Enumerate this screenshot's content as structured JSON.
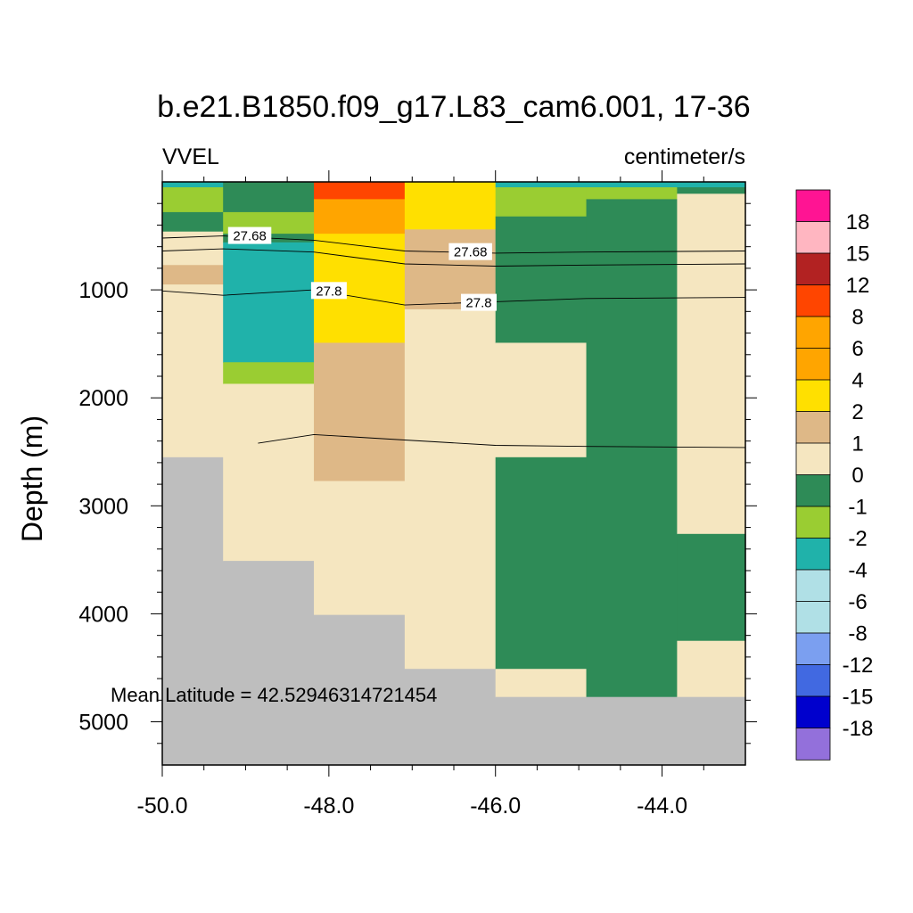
{
  "chart_data": {
    "type": "heatmap",
    "title": "b.e21.B1850.f09_g17.L83_cam6.001, 17-36",
    "left_subtitle": "VVEL",
    "right_subtitle": "centimeter/s",
    "ylabel": "Depth (m)",
    "xlabel": "",
    "xlim": [
      -50.0,
      -43.0
    ],
    "ylim": [
      5400,
      0
    ],
    "x_ticks": [
      -50.0,
      -48.0,
      -46.0,
      -44.0
    ],
    "x_tick_labels": [
      "-50.0",
      "-48.0",
      "-46.0",
      "-44.0"
    ],
    "y_ticks": [
      1000,
      2000,
      3000,
      4000,
      5000
    ],
    "y_tick_labels": [
      "1000",
      "2000",
      "3000",
      "4000",
      "5000"
    ],
    "annotation": "Mean Latitude = 42.52946314721454",
    "colorbar": {
      "labels": [
        "18",
        "15",
        "12",
        "8",
        "6",
        "4",
        "2",
        "1",
        "0",
        "-1",
        "-2",
        "-4",
        "-6",
        "-8",
        "-12",
        "-15",
        "-18"
      ],
      "colors": [
        "#ff1493",
        "#ffb6c1",
        "#b22222",
        "#ff4500",
        "#ffa500",
        "#ffa500",
        "#ffe000",
        "#deb887",
        "#f5e6c0",
        "#2e8b57",
        "#9acd32",
        "#20b2aa",
        "#b0e0e6",
        "#b0e0e6",
        "#7b9ff0",
        "#4169e1",
        "#0000cd",
        "#9370db"
      ]
    },
    "missing_color": "#bebebe",
    "columns": [
      {
        "x0": -50.0,
        "x1": -49.27,
        "cells": [
          {
            "d0": 0,
            "d1": 50,
            "c": "#20b2aa"
          },
          {
            "d0": 50,
            "d1": 280,
            "c": "#9acd32"
          },
          {
            "d0": 280,
            "d1": 460,
            "c": "#2e8b57"
          },
          {
            "d0": 460,
            "d1": 770,
            "c": "#f5e6c0"
          },
          {
            "d0": 770,
            "d1": 950,
            "c": "#deb887"
          },
          {
            "d0": 950,
            "d1": 2550,
            "c": "#f5e6c0"
          },
          {
            "d0": 2550,
            "d1": 5400,
            "c": "#bebebe"
          }
        ]
      },
      {
        "x0": -49.27,
        "x1": -48.18,
        "cells": [
          {
            "d0": 0,
            "d1": 280,
            "c": "#2e8b57"
          },
          {
            "d0": 280,
            "d1": 480,
            "c": "#9acd32"
          },
          {
            "d0": 480,
            "d1": 560,
            "c": "#2e8b57"
          },
          {
            "d0": 560,
            "d1": 1670,
            "c": "#20b2aa"
          },
          {
            "d0": 1670,
            "d1": 1870,
            "c": "#9acd32"
          },
          {
            "d0": 1870,
            "d1": 3510,
            "c": "#f5e6c0"
          },
          {
            "d0": 3510,
            "d1": 5400,
            "c": "#bebebe"
          }
        ]
      },
      {
        "x0": -48.18,
        "x1": -47.09,
        "cells": [
          {
            "d0": 0,
            "d1": 160,
            "c": "#ff4500"
          },
          {
            "d0": 160,
            "d1": 480,
            "c": "#ffa500"
          },
          {
            "d0": 480,
            "d1": 1490,
            "c": "#ffe000"
          },
          {
            "d0": 1490,
            "d1": 2770,
            "c": "#deb887"
          },
          {
            "d0": 2770,
            "d1": 4010,
            "c": "#f5e6c0"
          },
          {
            "d0": 4010,
            "d1": 5400,
            "c": "#bebebe"
          }
        ]
      },
      {
        "x0": -47.09,
        "x1": -46.0,
        "cells": [
          {
            "d0": 0,
            "d1": 440,
            "c": "#ffe000"
          },
          {
            "d0": 440,
            "d1": 1180,
            "c": "#deb887"
          },
          {
            "d0": 1180,
            "d1": 4510,
            "c": "#f5e6c0"
          },
          {
            "d0": 4510,
            "d1": 5400,
            "c": "#bebebe"
          }
        ]
      },
      {
        "x0": -46.0,
        "x1": -44.91,
        "cells": [
          {
            "d0": 0,
            "d1": 50,
            "c": "#20b2aa"
          },
          {
            "d0": 50,
            "d1": 320,
            "c": "#9acd32"
          },
          {
            "d0": 320,
            "d1": 1490,
            "c": "#2e8b57"
          },
          {
            "d0": 1490,
            "d1": 2550,
            "c": "#f5e6c0"
          },
          {
            "d0": 2550,
            "d1": 4510,
            "c": "#2e8b57"
          },
          {
            "d0": 4510,
            "d1": 4770,
            "c": "#f5e6c0"
          },
          {
            "d0": 4770,
            "d1": 5400,
            "c": "#bebebe"
          }
        ]
      },
      {
        "x0": -44.91,
        "x1": -43.82,
        "cells": [
          {
            "d0": 0,
            "d1": 50,
            "c": "#20b2aa"
          },
          {
            "d0": 50,
            "d1": 160,
            "c": "#9acd32"
          },
          {
            "d0": 160,
            "d1": 4770,
            "c": "#2e8b57"
          },
          {
            "d0": 4770,
            "d1": 5400,
            "c": "#bebebe"
          }
        ]
      },
      {
        "x0": -43.82,
        "x1": -43.0,
        "cells": [
          {
            "d0": 0,
            "d1": 50,
            "c": "#20b2aa"
          },
          {
            "d0": 50,
            "d1": 110,
            "c": "#2e8b57"
          },
          {
            "d0": 110,
            "d1": 3260,
            "c": "#f5e6c0"
          },
          {
            "d0": 3260,
            "d1": 4250,
            "c": "#2e8b57"
          },
          {
            "d0": 4250,
            "d1": 4770,
            "c": "#f5e6c0"
          },
          {
            "d0": 4770,
            "d1": 5400,
            "c": "#bebebe"
          }
        ]
      }
    ],
    "contours": [
      {
        "level": "27.68",
        "points": [
          [
            -50.0,
            520
          ],
          [
            -49.27,
            500
          ],
          [
            -48.18,
            540
          ],
          [
            -47.09,
            640
          ],
          [
            -46.0,
            660
          ],
          [
            -44.91,
            650
          ],
          [
            -43.0,
            640
          ]
        ]
      },
      {
        "level": "27.68",
        "points": [
          [
            -50.0,
            640
          ],
          [
            -49.27,
            620
          ],
          [
            -48.18,
            650
          ],
          [
            -47.09,
            760
          ],
          [
            -46.0,
            780
          ],
          [
            -44.91,
            770
          ],
          [
            -43.0,
            760
          ]
        ]
      },
      {
        "level": "27.8",
        "points": [
          [
            -50.0,
            1010
          ],
          [
            -49.27,
            1050
          ],
          [
            -48.18,
            1000
          ],
          [
            -47.09,
            1140
          ],
          [
            -46.0,
            1110
          ],
          [
            -44.91,
            1080
          ],
          [
            -43.0,
            1070
          ]
        ]
      },
      {
        "level": "",
        "points": [
          [
            -48.85,
            2420
          ],
          [
            -48.18,
            2340
          ],
          [
            -47.09,
            2390
          ],
          [
            -46.0,
            2440
          ],
          [
            -44.91,
            2450
          ],
          [
            -43.0,
            2460
          ]
        ]
      }
    ],
    "contour_labels": [
      {
        "text": "27.68",
        "x": -48.95,
        "y": 500
      },
      {
        "text": "27.68",
        "x": -46.3,
        "y": 650
      },
      {
        "text": "27.8",
        "x": -48.0,
        "y": 1010
      },
      {
        "text": "27.8",
        "x": -46.2,
        "y": 1120
      }
    ]
  }
}
